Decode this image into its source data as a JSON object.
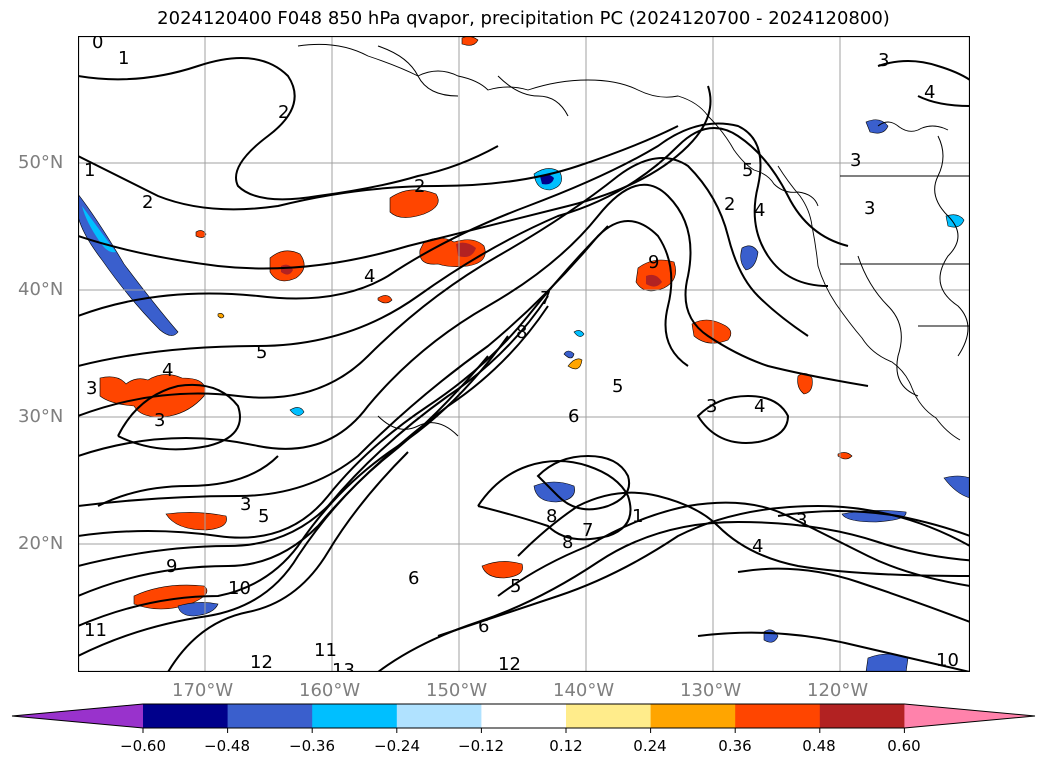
{
  "title": "2024120400 F048 850 hPa qvapor, precipitation PC (2024120700 - 2024120800)",
  "map": {
    "lat_labels": [
      "50°N",
      "40°N",
      "30°N",
      "20°N"
    ],
    "lon_labels": [
      "170°W",
      "160°W",
      "150°W",
      "140°W",
      "130°W",
      "120°W"
    ],
    "contour_labels": [
      "0",
      "1",
      "2",
      "2",
      "1",
      "2",
      "3",
      "4",
      "5",
      "4",
      "3",
      "3",
      "5",
      "7",
      "8",
      "9",
      "3",
      "5",
      "6",
      "5",
      "2",
      "4",
      "3",
      "9",
      "10",
      "11",
      "12",
      "13",
      "11",
      "12",
      "6",
      "8",
      "7",
      "3",
      "4",
      "10",
      "3",
      "4",
      "3",
      "4",
      "5",
      "1",
      "6",
      "8"
    ]
  },
  "colorbar": {
    "ticks": [
      "−0.60",
      "−0.48",
      "−0.36",
      "−0.24",
      "−0.12",
      "0.12",
      "0.24",
      "0.36",
      "0.48",
      "0.60"
    ],
    "colors": [
      "#9932CC",
      "#00008B",
      "#3A5FCD",
      "#00BFFF",
      "#B0E2FF",
      "#FFFFFF",
      "#FFEC8B",
      "#FFA500",
      "#FF4500",
      "#B22222",
      "#FF82AB"
    ]
  }
}
